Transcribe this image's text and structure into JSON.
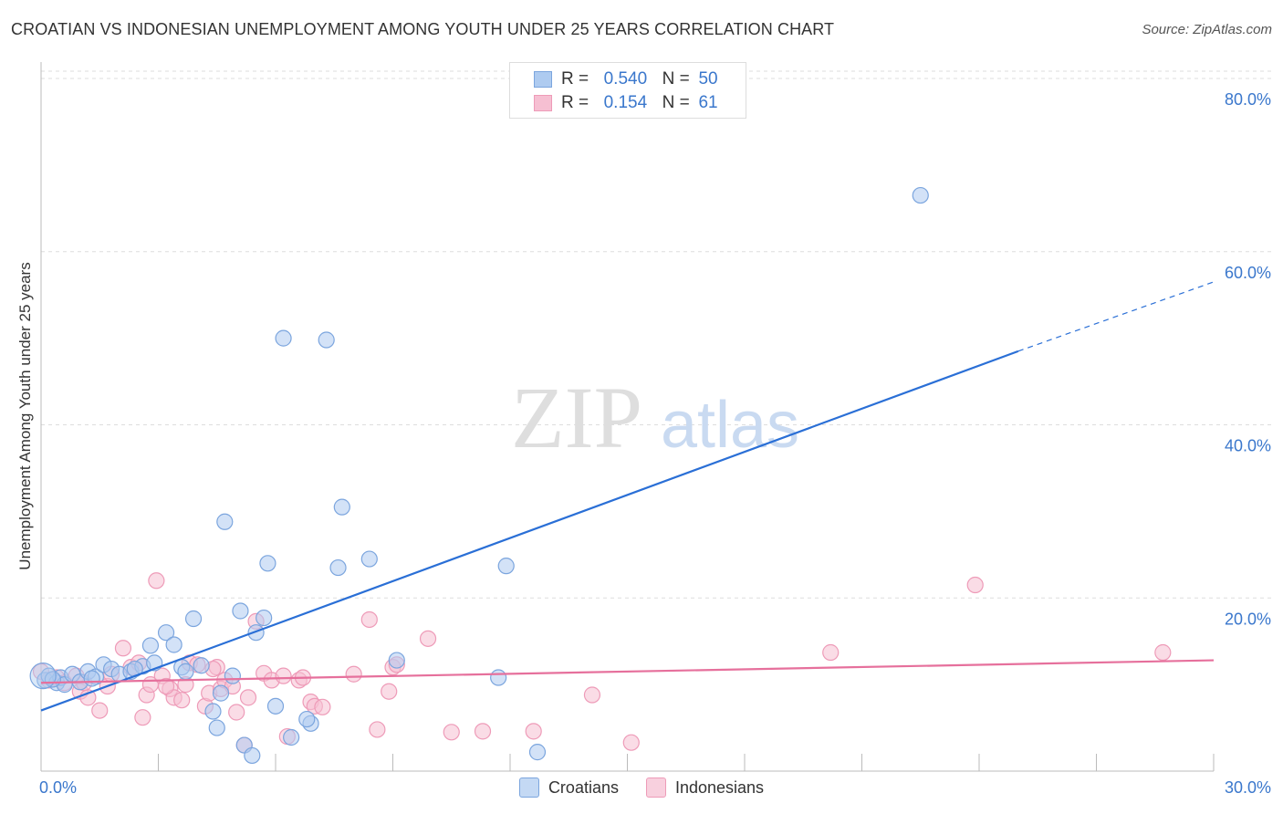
{
  "title": "CROATIAN VS INDONESIAN UNEMPLOYMENT AMONG YOUTH UNDER 25 YEARS CORRELATION CHART",
  "source": "Source: ZipAtlas.com",
  "watermark": {
    "zip": "ZIP",
    "atlas": "atlas"
  },
  "legend": {
    "rows": [
      {
        "r_label": "R =",
        "r_value": "0.540",
        "n_label": "N =",
        "n_value": "50"
      },
      {
        "r_label": "R =",
        "r_value": "0.154",
        "n_label": "N =",
        "n_value": "61"
      }
    ]
  },
  "bottom_legend": [
    "Croatians",
    "Indonesians"
  ],
  "colors": {
    "blue_fill": "#aecbf0",
    "blue_stroke": "#7ba5de",
    "blue_line": "#2a6fd6",
    "pink_fill": "#f6bfd2",
    "pink_stroke": "#ee9bb8",
    "pink_line": "#e6709c",
    "tick_label": "#3a77cc",
    "grid": "#dddddd"
  },
  "chart_data": {
    "type": "scatter",
    "ylabel": "Unemployment Among Youth under 25 years",
    "xlim": [
      0,
      30
    ],
    "ylim": [
      0,
      80
    ],
    "x_tick_labels": [
      "0.0%",
      "30.0%"
    ],
    "y_ticks": [
      20,
      40,
      60,
      80
    ],
    "y_tick_labels": [
      "20.0%",
      "40.0%",
      "60.0%",
      "80.0%"
    ],
    "series": [
      {
        "name": "Croatians",
        "color": "#aecbf0",
        "r": 0.54,
        "n": 50,
        "trend": {
          "x": [
            0,
            25
          ],
          "y": [
            7.0,
            48.5
          ],
          "dashed_to": {
            "x": 30,
            "y": 56.5
          }
        },
        "points": [
          [
            0.1,
            10.5
          ],
          [
            0.2,
            11.0
          ],
          [
            0.4,
            10.2
          ],
          [
            0.5,
            10.8
          ],
          [
            0.6,
            10.0
          ],
          [
            0.8,
            11.2
          ],
          [
            1.0,
            10.3
          ],
          [
            1.2,
            11.5
          ],
          [
            1.4,
            10.9
          ],
          [
            1.6,
            12.3
          ],
          [
            1.8,
            11.8
          ],
          [
            2.0,
            11.2
          ],
          [
            2.3,
            11.5
          ],
          [
            2.6,
            12.1
          ],
          [
            2.9,
            12.5
          ],
          [
            2.8,
            14.5
          ],
          [
            3.2,
            16.0
          ],
          [
            3.4,
            14.6
          ],
          [
            3.6,
            12.0
          ],
          [
            3.7,
            11.5
          ],
          [
            3.9,
            17.6
          ],
          [
            4.1,
            12.2
          ],
          [
            4.4,
            6.9
          ],
          [
            4.5,
            5.0
          ],
          [
            4.6,
            9.0
          ],
          [
            4.7,
            28.8
          ],
          [
            4.9,
            11.0
          ],
          [
            5.1,
            18.5
          ],
          [
            5.2,
            3.0
          ],
          [
            5.4,
            1.8
          ],
          [
            5.5,
            16.0
          ],
          [
            5.7,
            17.7
          ],
          [
            5.8,
            24.0
          ],
          [
            6.0,
            7.5
          ],
          [
            6.2,
            50.0
          ],
          [
            6.4,
            3.9
          ],
          [
            6.9,
            5.5
          ],
          [
            6.8,
            6.0
          ],
          [
            7.3,
            49.8
          ],
          [
            7.6,
            23.5
          ],
          [
            7.7,
            30.5
          ],
          [
            8.4,
            24.5
          ],
          [
            9.1,
            12.8
          ],
          [
            11.7,
            10.8
          ],
          [
            11.9,
            23.7
          ],
          [
            12.7,
            2.2
          ],
          [
            22.5,
            66.5
          ],
          [
            0.3,
            10.6
          ],
          [
            1.3,
            10.7
          ],
          [
            2.4,
            11.8
          ]
        ]
      },
      {
        "name": "Indonesians",
        "color": "#f6bfd2",
        "r": 0.154,
        "n": 61,
        "trend": {
          "x": [
            0,
            30
          ],
          "y": [
            10.2,
            12.8
          ]
        },
        "points": [
          [
            0.0,
            11.5
          ],
          [
            0.2,
            10.5
          ],
          [
            0.4,
            10.8
          ],
          [
            0.6,
            10.2
          ],
          [
            0.9,
            11.0
          ],
          [
            1.0,
            9.2
          ],
          [
            1.2,
            8.5
          ],
          [
            1.5,
            7.0
          ],
          [
            1.7,
            9.8
          ],
          [
            1.8,
            11.2
          ],
          [
            2.1,
            14.2
          ],
          [
            2.3,
            12.0
          ],
          [
            2.5,
            12.5
          ],
          [
            2.6,
            6.2
          ],
          [
            2.7,
            8.8
          ],
          [
            2.8,
            10.0
          ],
          [
            2.95,
            22.0
          ],
          [
            3.1,
            11.0
          ],
          [
            3.3,
            9.5
          ],
          [
            3.4,
            8.5
          ],
          [
            3.6,
            8.2
          ],
          [
            3.7,
            10.0
          ],
          [
            3.8,
            12.5
          ],
          [
            4.0,
            12.3
          ],
          [
            4.2,
            7.5
          ],
          [
            4.3,
            9.0
          ],
          [
            4.5,
            12.0
          ],
          [
            4.6,
            9.5
          ],
          [
            4.7,
            10.5
          ],
          [
            4.9,
            9.8
          ],
          [
            5.0,
            6.8
          ],
          [
            5.2,
            3.0
          ],
          [
            5.3,
            8.5
          ],
          [
            5.5,
            17.3
          ],
          [
            5.7,
            11.3
          ],
          [
            5.9,
            10.5
          ],
          [
            6.2,
            11.0
          ],
          [
            6.3,
            4.0
          ],
          [
            6.6,
            10.5
          ],
          [
            6.7,
            10.8
          ],
          [
            6.9,
            8.0
          ],
          [
            7.0,
            7.5
          ],
          [
            7.2,
            7.4
          ],
          [
            8.0,
            11.2
          ],
          [
            8.4,
            17.5
          ],
          [
            8.6,
            4.8
          ],
          [
            8.9,
            9.2
          ],
          [
            9.0,
            12.0
          ],
          [
            9.1,
            12.3
          ],
          [
            9.9,
            15.3
          ],
          [
            10.5,
            4.5
          ],
          [
            11.3,
            4.6
          ],
          [
            12.6,
            4.6
          ],
          [
            14.1,
            8.8
          ],
          [
            15.1,
            3.3
          ],
          [
            20.2,
            13.7
          ],
          [
            23.9,
            21.5
          ],
          [
            28.7,
            13.7
          ],
          [
            1.1,
            10.2
          ],
          [
            3.2,
            9.8
          ],
          [
            4.4,
            11.8
          ]
        ]
      }
    ]
  }
}
